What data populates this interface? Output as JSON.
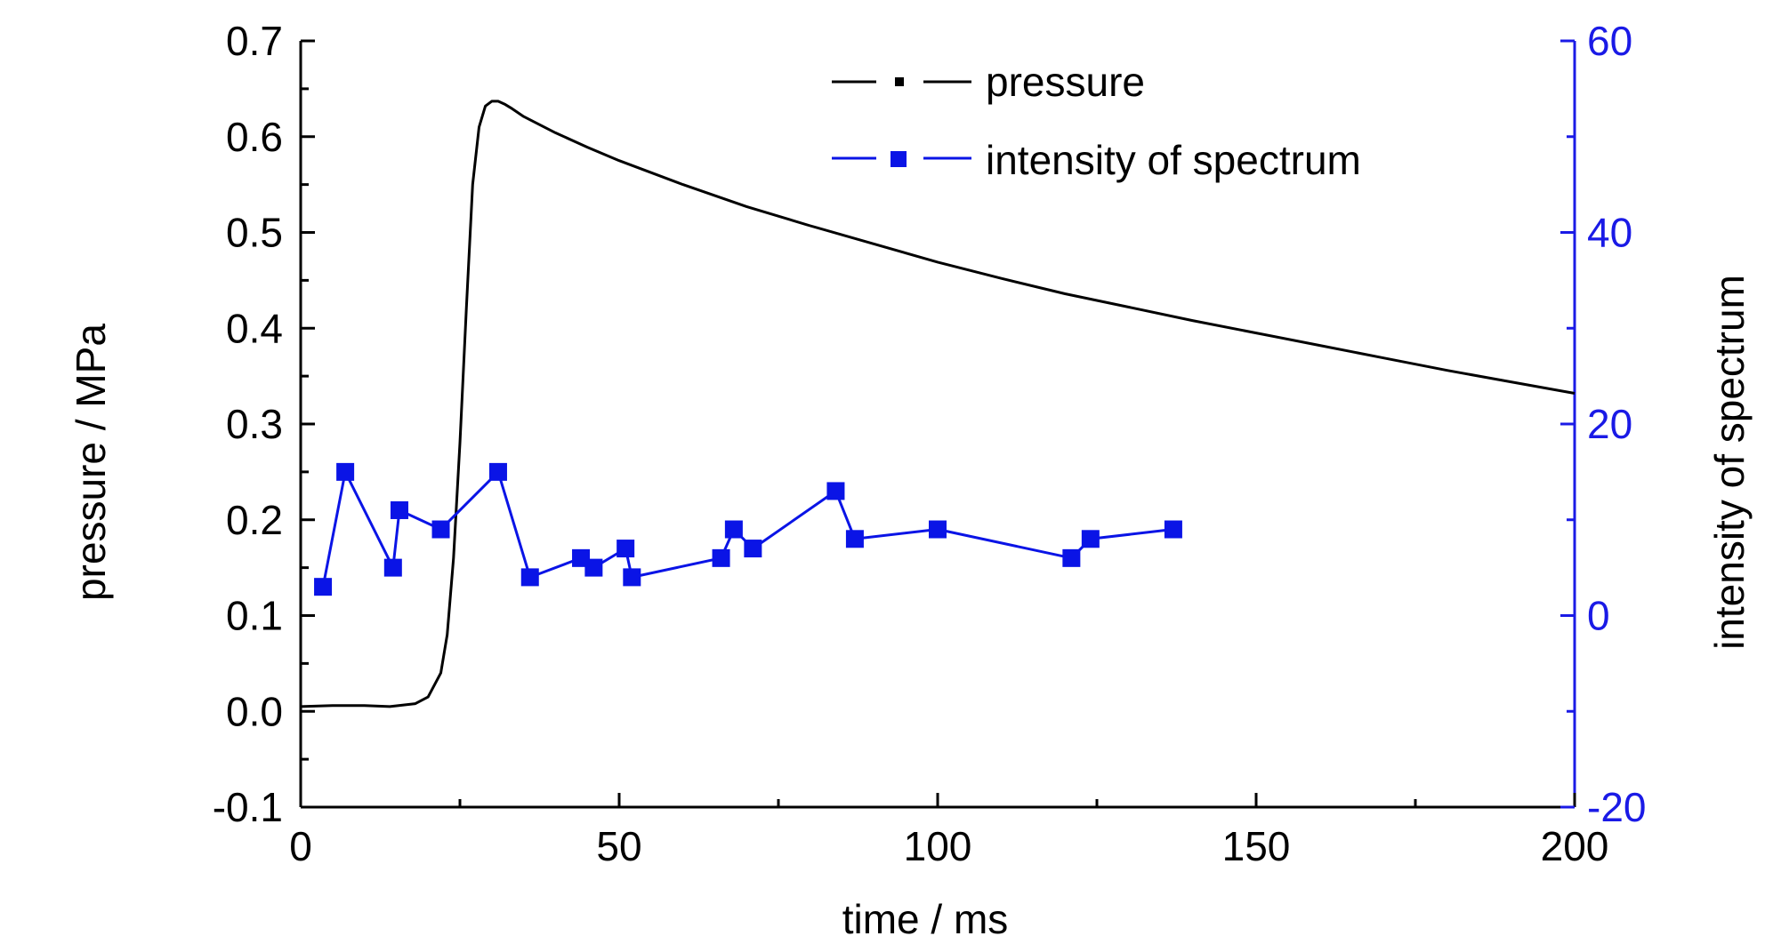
{
  "chart_data": {
    "type": "line",
    "xlabel": "time / ms",
    "ylabel_left": "pressure / MPa",
    "ylabel_right": "intensity of spectrum",
    "xlim": [
      0,
      200
    ],
    "ylim_left": [
      -0.1,
      0.7
    ],
    "ylim_right": [
      -20,
      60
    ],
    "x_ticks": [
      "0",
      "50",
      "100",
      "150",
      "200"
    ],
    "y_left_ticks": [
      "-0.1",
      "0.0",
      "0.1",
      "0.2",
      "0.3",
      "0.4",
      "0.5",
      "0.6",
      "0.7"
    ],
    "y_right_ticks": [
      "-20",
      "0",
      "20",
      "40",
      "60"
    ],
    "grid": false,
    "legend_position": "top-center",
    "colors": {
      "pressure": "#000000",
      "intensity": "#0a14e6",
      "axes_left": "#000000",
      "axes_right": "#1a1ae6"
    },
    "series": [
      {
        "name": "pressure",
        "axis": "left",
        "x": [
          0,
          5,
          10,
          14,
          18,
          20,
          22,
          23,
          24,
          25,
          26,
          27,
          28,
          29,
          30,
          31,
          32,
          33,
          35,
          40,
          45,
          50,
          60,
          70,
          80,
          90,
          100,
          110,
          120,
          130,
          140,
          150,
          160,
          170,
          180,
          190,
          200
        ],
        "y": [
          0.005,
          0.006,
          0.006,
          0.005,
          0.008,
          0.015,
          0.04,
          0.08,
          0.16,
          0.28,
          0.42,
          0.55,
          0.61,
          0.632,
          0.637,
          0.637,
          0.634,
          0.63,
          0.621,
          0.604,
          0.589,
          0.575,
          0.55,
          0.527,
          0.507,
          0.488,
          0.469,
          0.452,
          0.436,
          0.422,
          0.408,
          0.395,
          0.382,
          0.369,
          0.356,
          0.344,
          0.332
        ]
      },
      {
        "name": "intensity of spectrum",
        "axis": "right",
        "x": [
          3.5,
          7,
          14.5,
          15.5,
          22,
          31,
          36,
          44,
          46,
          51,
          52,
          66,
          68,
          71,
          84,
          87,
          100,
          121,
          124,
          137
        ],
        "y": [
          3,
          15,
          5,
          11,
          9,
          15,
          4,
          6,
          5,
          7,
          4,
          6,
          9,
          7,
          13,
          8,
          9,
          6,
          8,
          9
        ]
      }
    ]
  },
  "legend": {
    "pressure_label": "pressure",
    "intensity_label": "intensity of spectrum"
  }
}
